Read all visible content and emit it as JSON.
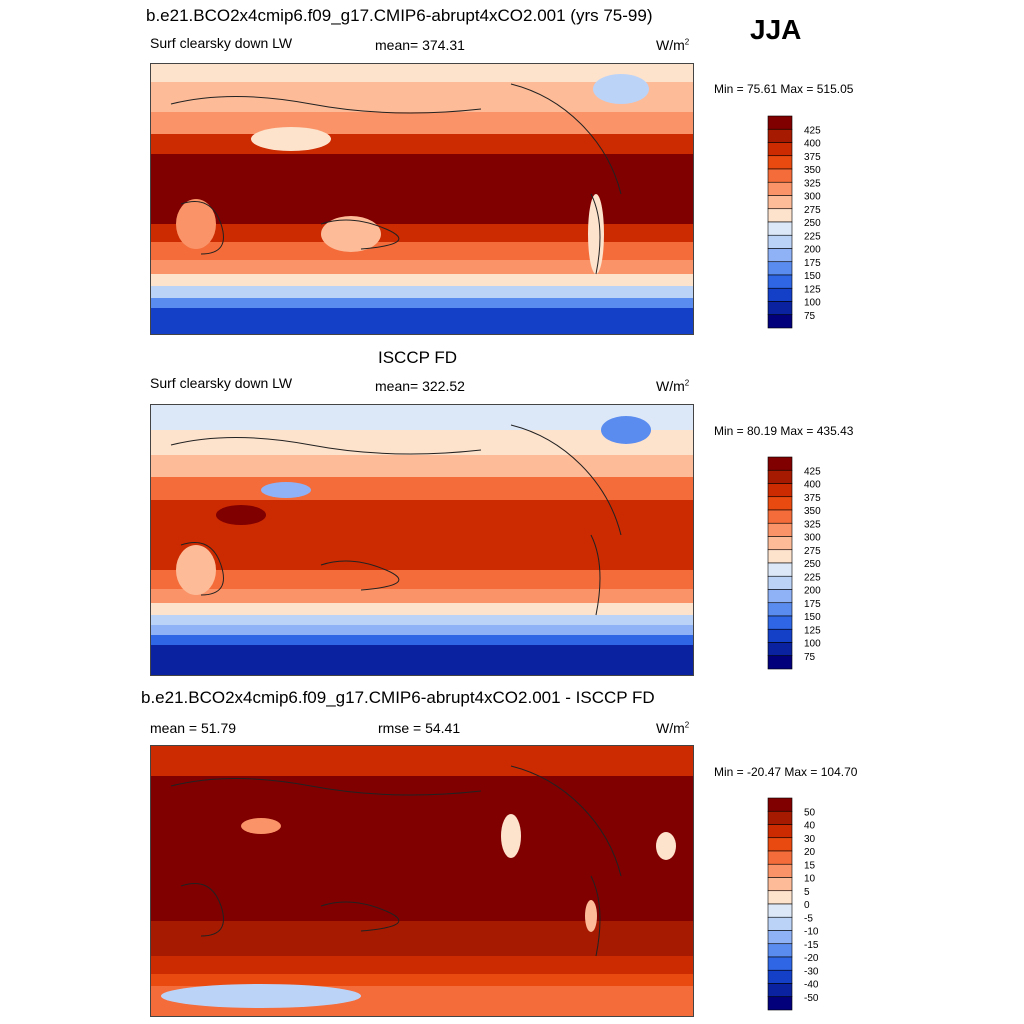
{
  "season": "JJA",
  "panels": [
    {
      "title": "b.e21.BCO2x4cmip6.f09_g17.CMIP6-abrupt4xCO2.001 (yrs 75-99)",
      "left": "Surf clearsky down LW",
      "center": "mean= 374.31",
      "units": "W/m",
      "units_sup": "2",
      "minmax": "Min =  75.61 Max = 515.05"
    },
    {
      "title": "ISCCP FD",
      "left": "Surf clearsky down LW",
      "center": "mean= 322.52",
      "units": "W/m",
      "units_sup": "2",
      "minmax": "Min =  80.19 Max = 435.43"
    },
    {
      "title": "b.e21.BCO2x4cmip6.f09_g17.CMIP6-abrupt4xCO2.001 - ISCCP FD",
      "left": "mean =  51.79",
      "center": "rmse =  54.41",
      "units": "W/m",
      "units_sup": "2",
      "minmax": "Min = -20.47 Max = 104.70"
    }
  ],
  "chart_data": [
    {
      "type": "heatmap",
      "title": "b.e21.BCO2x4cmip6.f09_g17.CMIP6-abrupt4xCO2.001 (yrs 75-99)",
      "variable": "Surf clearsky down LW",
      "units": "W/m2",
      "mean": 374.31,
      "min": 75.61,
      "max": 515.05,
      "colorbar_levels": [
        "425",
        "400",
        "375",
        "350",
        "325",
        "300",
        "275",
        "250",
        "225",
        "200",
        "175",
        "150",
        "125",
        "100",
        "75"
      ],
      "colorbar_colors": [
        "#800000",
        "#a51a00",
        "#cc2a00",
        "#e84a10",
        "#f46c3a",
        "#fa9468",
        "#fdbb98",
        "#fde2cc",
        "#dce8f8",
        "#bcd3f8",
        "#8fb2f6",
        "#5a8cf0",
        "#2f66e6",
        "#1440c8",
        "#0a22a0",
        "#02007a"
      ]
    },
    {
      "type": "heatmap",
      "title": "ISCCP FD",
      "variable": "Surf clearsky down LW",
      "units": "W/m2",
      "mean": 322.52,
      "min": 80.19,
      "max": 435.43,
      "colorbar_levels": [
        "425",
        "400",
        "375",
        "350",
        "325",
        "300",
        "275",
        "250",
        "225",
        "200",
        "175",
        "150",
        "125",
        "100",
        "75"
      ],
      "colorbar_colors": [
        "#800000",
        "#a51a00",
        "#cc2a00",
        "#e84a10",
        "#f46c3a",
        "#fa9468",
        "#fdbb98",
        "#fde2cc",
        "#dce8f8",
        "#bcd3f8",
        "#8fb2f6",
        "#5a8cf0",
        "#2f66e6",
        "#1440c8",
        "#0a22a0",
        "#02007a"
      ]
    },
    {
      "type": "heatmap",
      "title": "b.e21.BCO2x4cmip6.f09_g17.CMIP6-abrupt4xCO2.001 - ISCCP FD",
      "units": "W/m2",
      "mean": 51.79,
      "rmse": 54.41,
      "min": -20.47,
      "max": 104.7,
      "colorbar_levels": [
        "50",
        "40",
        "30",
        "20",
        "15",
        "10",
        "5",
        "0",
        "-5",
        "-10",
        "-15",
        "-20",
        "-30",
        "-40",
        "-50"
      ],
      "colorbar_colors": [
        "#800000",
        "#a51a00",
        "#cc2a00",
        "#e84a10",
        "#f46c3a",
        "#fa9468",
        "#fdbb98",
        "#fde2cc",
        "#dce8f8",
        "#bcd3f8",
        "#8fb2f6",
        "#5a8cf0",
        "#2f66e6",
        "#1440c8",
        "#0a22a0",
        "#02007a"
      ]
    }
  ]
}
